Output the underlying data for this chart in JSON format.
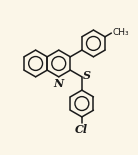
{
  "background_color": "#fbf6e8",
  "bond_color": "#1a1a1a",
  "line_width": 1.1,
  "font_size": 8.0,
  "figsize": [
    1.38,
    1.55
  ],
  "dpi": 100,
  "N_label": "N",
  "S_label": "S",
  "Cl_label": "Cl",
  "CH3_label": "CH₃"
}
